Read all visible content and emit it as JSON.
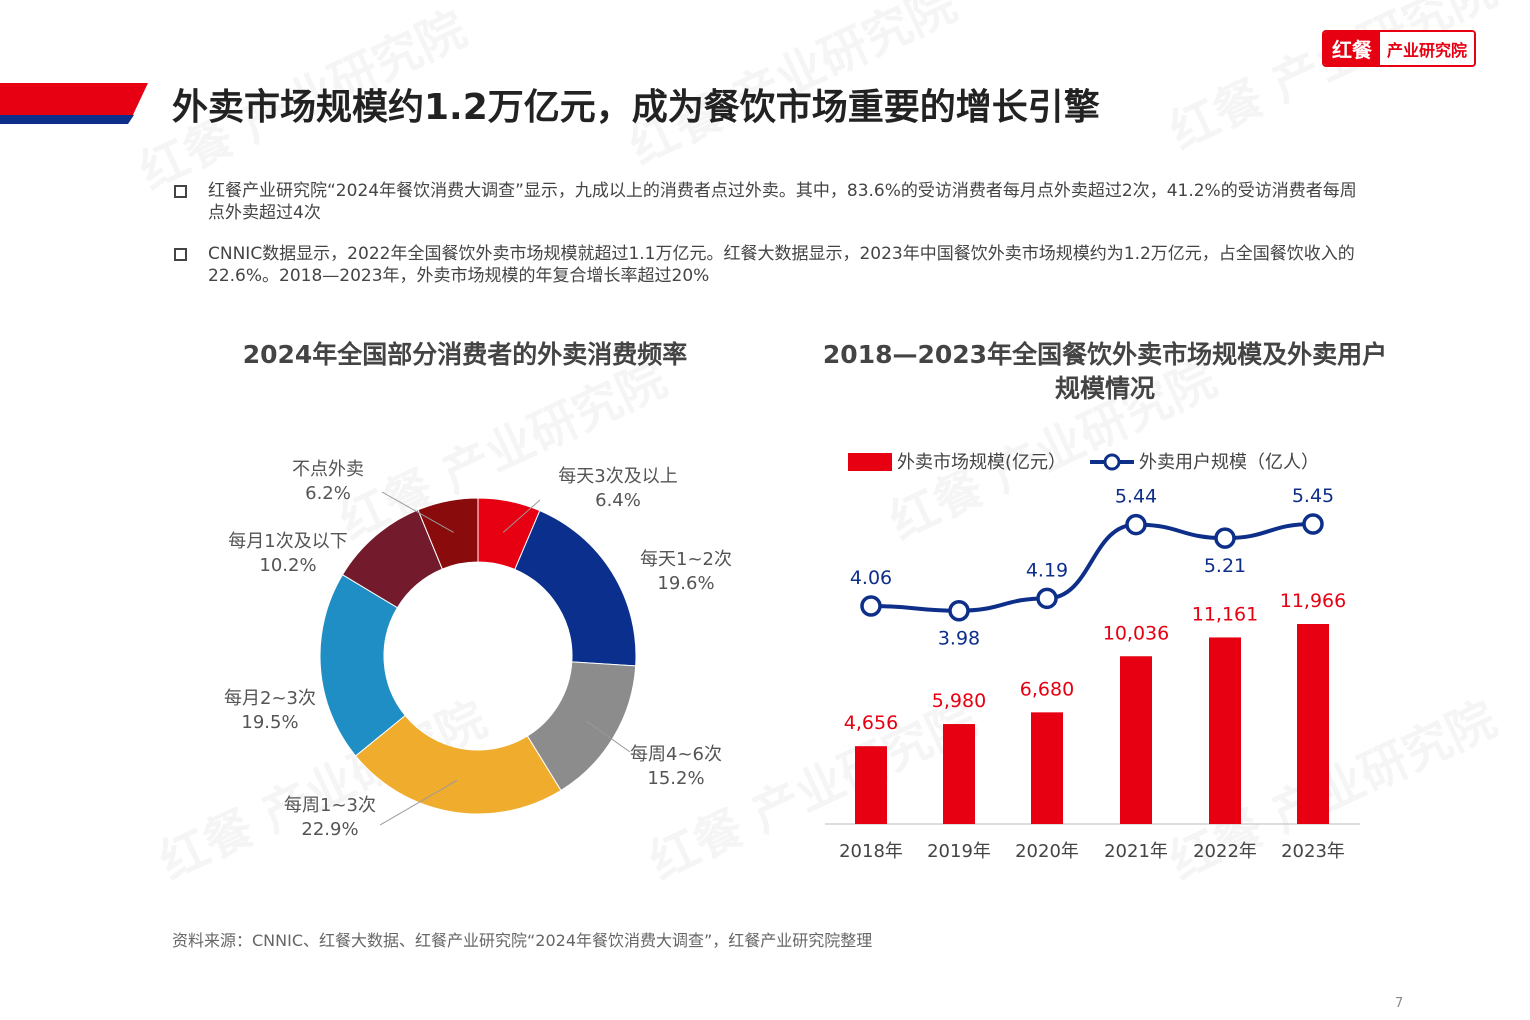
{
  "brand": {
    "mark": "红餐",
    "name": "产业研究院",
    "watermark": "红餐 产业研究院"
  },
  "title": "外卖市场规模约1.2万亿元，成为餐饮市场重要的增长引擎",
  "bullets": [
    "红餐产业研究院“2024年餐饮消费大调查”显示，九成以上的消费者点过外卖。其中，83.6%的受访消费者每月点外卖超过2次，41.2%的受访消费者每周点外卖超过4次",
    "CNNIC数据显示，2022年全国餐饮外卖市场规模就超过1.1万亿元。红餐大数据显示，2023年中国餐饮外卖市场规模约为1.2万亿元，占全国餐饮收入的22.6%。2018—2023年，外卖市场规模的年复合增长率超过20%"
  ],
  "colors": {
    "brand_red": "#e60012",
    "navy": "#0d2f8a"
  },
  "chart_data": [
    {
      "type": "pie",
      "donut": true,
      "title": "2024年全国部分消费者的外卖消费频率",
      "slices": [
        {
          "label": "每天3次及以上",
          "value_text": "6.4%",
          "value": 6.4,
          "color": "#e60012"
        },
        {
          "label": "每天1~2次",
          "value_text": "19.6%",
          "value": 19.6,
          "color": "#0b2f8c"
        },
        {
          "label": "每周4~6次",
          "value_text": "15.2%",
          "value": 15.2,
          "color": "#8c8c8c"
        },
        {
          "label": "每周1~3次",
          "value_text": "22.9%",
          "value": 22.9,
          "color": "#f0ad2d"
        },
        {
          "label": "每月2~3次",
          "value_text": "19.5%",
          "value": 19.5,
          "color": "#1e8ec4"
        },
        {
          "label": "每月1次及以下",
          "value_text": "10.2%",
          "value": 10.2,
          "color": "#731b2d"
        },
        {
          "label": "不点外卖",
          "value_text": "6.2%",
          "value": 6.2,
          "color": "#8a0b0b"
        }
      ]
    },
    {
      "type": "bar+line",
      "title": "2018—2023年全国餐饮外卖市场规模及外卖用户规模情况",
      "categories": [
        "2018年",
        "2019年",
        "2020年",
        "2021年",
        "2022年",
        "2023年"
      ],
      "legend_position": "top",
      "series": [
        {
          "name": "外卖市场规模(亿元）",
          "type": "bar",
          "color": "#e60012",
          "values": [
            4656,
            5980,
            6680,
            10036,
            11161,
            11966
          ],
          "labels": [
            "4,656",
            "5,980",
            "6,680",
            "10,036",
            "11,161",
            "11,966"
          ]
        },
        {
          "name": "外卖用户规模（亿人）",
          "type": "line",
          "color": "#0d2f8a",
          "values": [
            4.06,
            3.98,
            4.19,
            5.44,
            5.21,
            5.45
          ],
          "labels": [
            "4.06",
            "3.98",
            "4.19",
            "5.44",
            "5.21",
            "5.45"
          ]
        }
      ],
      "grid": false
    }
  ],
  "source": "资料来源：CNNIC、红餐大数据、红餐产业研究院“2024年餐饮消费大调查”，红餐产业研究院整理",
  "page_number": "7"
}
